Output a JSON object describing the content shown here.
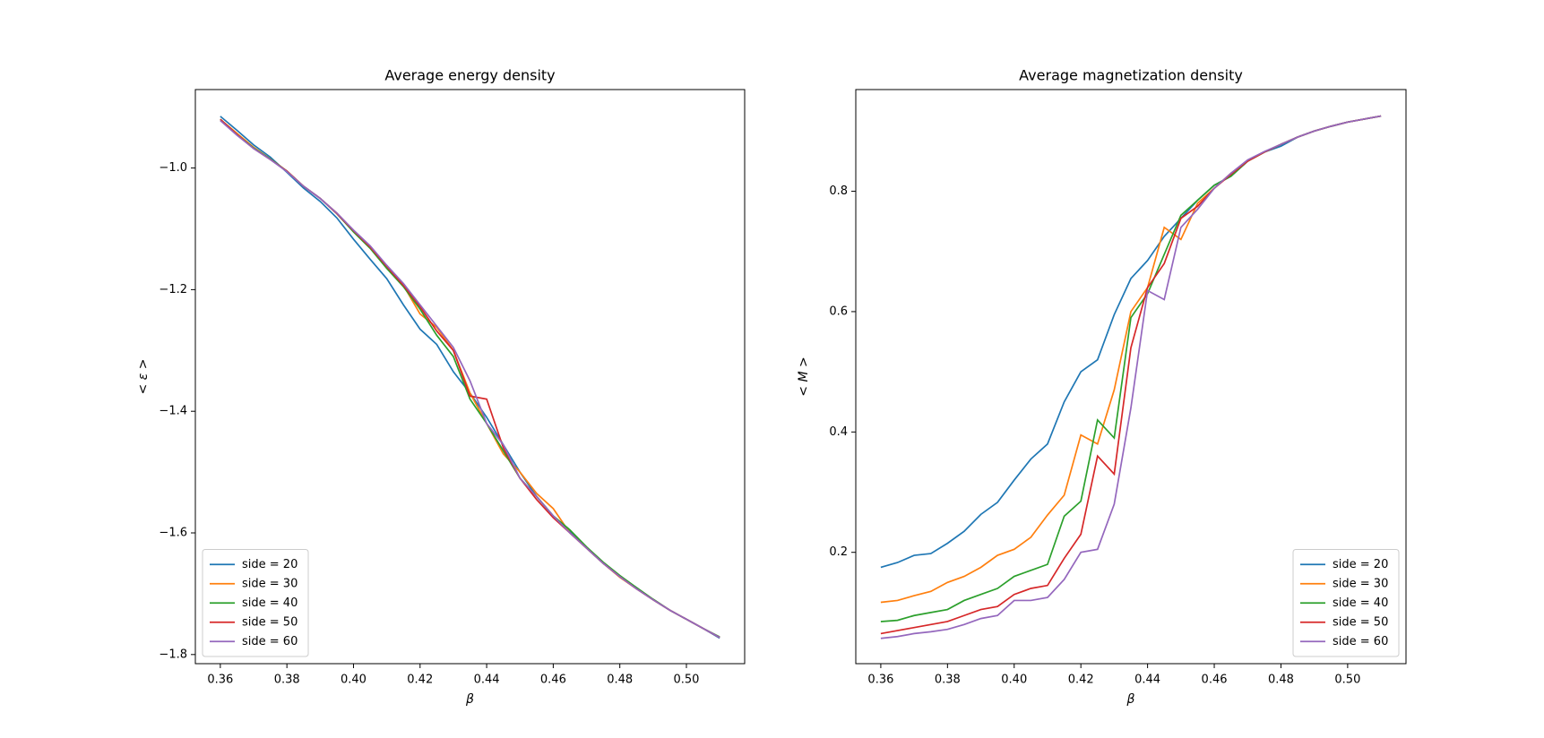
{
  "chart_data": [
    {
      "type": "line",
      "title": "Average energy density",
      "xlabel": "β",
      "ylabel": "< ε >",
      "legend": "lower left",
      "x": [
        0.36,
        0.365,
        0.37,
        0.375,
        0.38,
        0.385,
        0.39,
        0.395,
        0.4,
        0.405,
        0.41,
        0.415,
        0.42,
        0.425,
        0.43,
        0.435,
        0.44,
        0.445,
        0.45,
        0.455,
        0.46,
        0.465,
        0.47,
        0.475,
        0.48,
        0.485,
        0.49,
        0.495,
        0.5,
        0.505,
        0.51
      ],
      "xlim": [
        0.3525,
        0.5175
      ],
      "xticks": [
        {
          "value": 0.36,
          "label": "0.36"
        },
        {
          "value": 0.38,
          "label": "0.38"
        },
        {
          "value": 0.4,
          "label": "0.40"
        },
        {
          "value": 0.42,
          "label": "0.42"
        },
        {
          "value": 0.44,
          "label": "0.44"
        },
        {
          "value": 0.46,
          "label": "0.46"
        },
        {
          "value": 0.48,
          "label": "0.48"
        },
        {
          "value": 0.5,
          "label": "0.50"
        }
      ],
      "ylim": [
        -1.815,
        -0.871
      ],
      "yticks": [
        {
          "value": -1.8,
          "label": "−1.8"
        },
        {
          "value": -1.6,
          "label": "−1.6"
        },
        {
          "value": -1.4,
          "label": "−1.4"
        },
        {
          "value": -1.2,
          "label": "−1.2"
        },
        {
          "value": -1.0,
          "label": "−1.0"
        }
      ],
      "series": [
        {
          "name": "side = 20",
          "color": "#1f77b4",
          "values": [
            -0.915,
            -0.938,
            -0.962,
            -0.982,
            -1.007,
            -1.033,
            -1.055,
            -1.082,
            -1.117,
            -1.15,
            -1.182,
            -1.225,
            -1.265,
            -1.29,
            -1.335,
            -1.37,
            -1.41,
            -1.455,
            -1.5,
            -1.54,
            -1.572,
            -1.598,
            -1.625,
            -1.65,
            -1.672,
            -1.69,
            -1.71,
            -1.727,
            -1.742,
            -1.757,
            -1.773
          ]
        },
        {
          "name": "side = 30",
          "color": "#ff7f0e",
          "values": [
            -0.92,
            -0.943,
            -0.966,
            -0.985,
            -1.005,
            -1.03,
            -1.05,
            -1.074,
            -1.104,
            -1.13,
            -1.163,
            -1.193,
            -1.24,
            -1.262,
            -1.3,
            -1.37,
            -1.42,
            -1.47,
            -1.5,
            -1.535,
            -1.56,
            -1.6,
            -1.625,
            -1.65,
            -1.673,
            -1.692,
            -1.71,
            -1.727,
            -1.742,
            -1.757,
            -1.772
          ]
        },
        {
          "name": "side = 40",
          "color": "#2ca02c",
          "values": [
            -0.92,
            -0.945,
            -0.967,
            -0.985,
            -1.005,
            -1.03,
            -1.05,
            -1.075,
            -1.105,
            -1.132,
            -1.165,
            -1.195,
            -1.232,
            -1.275,
            -1.31,
            -1.38,
            -1.42,
            -1.465,
            -1.51,
            -1.54,
            -1.572,
            -1.595,
            -1.623,
            -1.648,
            -1.67,
            -1.69,
            -1.709,
            -1.727,
            -1.742,
            -1.757,
            -1.771
          ]
        },
        {
          "name": "side = 50",
          "color": "#d62728",
          "values": [
            -0.92,
            -0.945,
            -0.968,
            -0.986,
            -1.005,
            -1.03,
            -1.05,
            -1.075,
            -1.103,
            -1.13,
            -1.162,
            -1.193,
            -1.228,
            -1.268,
            -1.3,
            -1.375,
            -1.38,
            -1.46,
            -1.51,
            -1.545,
            -1.575,
            -1.6,
            -1.625,
            -1.65,
            -1.672,
            -1.692,
            -1.71,
            -1.727,
            -1.742,
            -1.757,
            -1.772
          ]
        },
        {
          "name": "side = 60",
          "color": "#9467bd",
          "values": [
            -0.922,
            -0.946,
            -0.968,
            -0.986,
            -1.006,
            -1.03,
            -1.05,
            -1.074,
            -1.102,
            -1.128,
            -1.16,
            -1.19,
            -1.225,
            -1.26,
            -1.295,
            -1.35,
            -1.42,
            -1.455,
            -1.51,
            -1.54,
            -1.572,
            -1.6,
            -1.625,
            -1.65,
            -1.672,
            -1.692,
            -1.71,
            -1.727,
            -1.742,
            -1.757,
            -1.772
          ]
        }
      ]
    },
    {
      "type": "line",
      "title": "Average magnetization density",
      "xlabel": "β",
      "ylabel": "< M >",
      "legend": "lower right",
      "x": [
        0.36,
        0.365,
        0.37,
        0.375,
        0.38,
        0.385,
        0.39,
        0.395,
        0.4,
        0.405,
        0.41,
        0.415,
        0.42,
        0.425,
        0.43,
        0.435,
        0.44,
        0.445,
        0.45,
        0.455,
        0.46,
        0.465,
        0.47,
        0.475,
        0.48,
        0.485,
        0.49,
        0.495,
        0.5,
        0.505,
        0.51
      ],
      "xlim": [
        0.3525,
        0.5175
      ],
      "xticks": [
        {
          "value": 0.36,
          "label": "0.36"
        },
        {
          "value": 0.38,
          "label": "0.38"
        },
        {
          "value": 0.4,
          "label": "0.40"
        },
        {
          "value": 0.42,
          "label": "0.42"
        },
        {
          "value": 0.44,
          "label": "0.44"
        },
        {
          "value": 0.46,
          "label": "0.46"
        },
        {
          "value": 0.48,
          "label": "0.48"
        },
        {
          "value": 0.5,
          "label": "0.50"
        }
      ],
      "ylim": [
        0.015,
        0.969
      ],
      "yticks": [
        0.2,
        0.4,
        0.6,
        0.8
      ],
      "series": [
        {
          "name": "side = 20",
          "color": "#1f77b4",
          "values": [
            0.175,
            0.183,
            0.195,
            0.198,
            0.215,
            0.235,
            0.263,
            0.283,
            0.32,
            0.355,
            0.38,
            0.45,
            0.5,
            0.52,
            0.595,
            0.655,
            0.685,
            0.725,
            0.755,
            0.785,
            0.81,
            0.825,
            0.85,
            0.865,
            0.875,
            0.89,
            0.9,
            0.908,
            0.915,
            0.92,
            0.925
          ]
        },
        {
          "name": "side = 30",
          "color": "#ff7f0e",
          "values": [
            0.117,
            0.12,
            0.128,
            0.135,
            0.15,
            0.16,
            0.175,
            0.195,
            0.205,
            0.225,
            0.262,
            0.295,
            0.395,
            0.38,
            0.47,
            0.6,
            0.64,
            0.74,
            0.72,
            0.78,
            0.805,
            0.83,
            0.85,
            0.865,
            0.878,
            0.89,
            0.9,
            0.908,
            0.915,
            0.92,
            0.925
          ]
        },
        {
          "name": "side = 40",
          "color": "#2ca02c",
          "values": [
            0.085,
            0.087,
            0.095,
            0.1,
            0.105,
            0.12,
            0.13,
            0.14,
            0.16,
            0.17,
            0.18,
            0.26,
            0.285,
            0.42,
            0.39,
            0.59,
            0.63,
            0.695,
            0.76,
            0.785,
            0.81,
            0.825,
            0.85,
            0.865,
            0.878,
            0.89,
            0.9,
            0.908,
            0.915,
            0.92,
            0.925
          ]
        },
        {
          "name": "side = 50",
          "color": "#d62728",
          "values": [
            0.065,
            0.07,
            0.075,
            0.08,
            0.085,
            0.095,
            0.105,
            0.11,
            0.13,
            0.14,
            0.145,
            0.19,
            0.23,
            0.36,
            0.33,
            0.54,
            0.64,
            0.68,
            0.755,
            0.775,
            0.805,
            0.828,
            0.85,
            0.865,
            0.878,
            0.89,
            0.9,
            0.908,
            0.915,
            0.92,
            0.925
          ]
        },
        {
          "name": "side = 60",
          "color": "#9467bd",
          "values": [
            0.057,
            0.06,
            0.065,
            0.068,
            0.072,
            0.08,
            0.09,
            0.095,
            0.12,
            0.12,
            0.125,
            0.155,
            0.2,
            0.205,
            0.28,
            0.44,
            0.635,
            0.62,
            0.74,
            0.77,
            0.805,
            0.83,
            0.852,
            0.866,
            0.878,
            0.89,
            0.9,
            0.908,
            0.915,
            0.92,
            0.925
          ]
        }
      ]
    }
  ]
}
